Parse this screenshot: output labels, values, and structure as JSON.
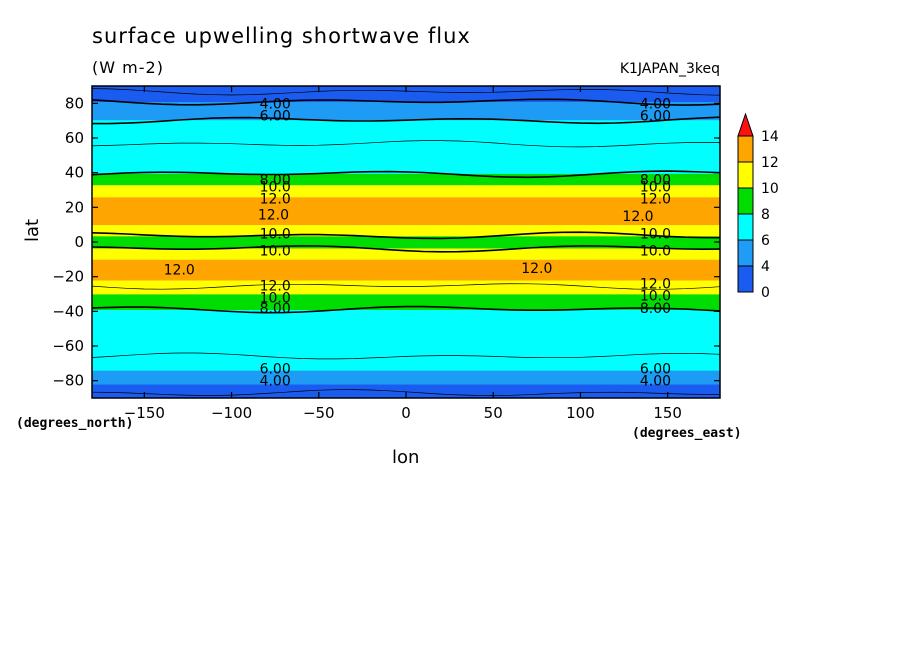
{
  "chart_data": {
    "type": "heatmap",
    "title": "surface upwelling shortwave flux",
    "units_label": "(W m-2)",
    "run_label": "K1JAPAN_3keq",
    "xlabel": "lon",
    "ylabel": "lat",
    "x_unit_label": "(degrees_east)",
    "y_unit_label": "(degrees_north)",
    "xlim": [
      -180,
      180
    ],
    "ylim": [
      -90,
      90
    ],
    "x_ticks": [
      -150,
      -100,
      -50,
      0,
      50,
      100,
      150
    ],
    "y_ticks": [
      -80,
      -60,
      -40,
      -20,
      0,
      20,
      40,
      60,
      80
    ],
    "colorbar": {
      "levels": [
        0,
        2,
        4,
        6,
        8,
        10,
        12,
        14
      ],
      "tick_labels": [
        "0",
        "4",
        "6",
        "8",
        "10",
        "12",
        "14"
      ],
      "colors": [
        "#1a5cf0",
        "#1f9cf5",
        "#00ffff",
        "#00dd00",
        "#ffff00",
        "#ffa500",
        "#ff1010"
      ],
      "extend": "max"
    },
    "zonal_profile": {
      "lat": [
        -90,
        -86,
        -82,
        -78,
        -74,
        -70,
        -60,
        -50,
        -42,
        -38,
        -34,
        -30,
        -26,
        -22,
        -16,
        -10,
        -6,
        -3,
        0,
        3,
        6,
        10,
        16,
        22,
        26,
        30,
        33,
        36,
        40,
        50,
        60,
        66,
        72,
        76,
        80,
        84,
        90
      ],
      "value": [
        2.5,
        3.2,
        4.0,
        5.0,
        6.0,
        6.8,
        7.3,
        7.5,
        7.6,
        8.1,
        9.0,
        10.0,
        10.8,
        12.0,
        12.4,
        12.0,
        11.0,
        9.7,
        9.3,
        9.7,
        11.0,
        12.0,
        12.6,
        12.5,
        12.0,
        11.0,
        10.0,
        9.0,
        7.8,
        7.2,
        6.9,
        6.5,
        5.8,
        5.0,
        4.2,
        3.4,
        2.5
      ]
    },
    "contour_labels": [
      {
        "text": "4.00",
        "lon": -75,
        "lat": 80
      },
      {
        "text": "6.00",
        "lon": -75,
        "lat": 73
      },
      {
        "text": "4.00",
        "lon": 143,
        "lat": 80
      },
      {
        "text": "6.00",
        "lon": 143,
        "lat": 73
      },
      {
        "text": "8.00",
        "lon": -75,
        "lat": 36
      },
      {
        "text": "10.0",
        "lon": -75,
        "lat": 32
      },
      {
        "text": "12.0",
        "lon": -75,
        "lat": 25
      },
      {
        "text": "12.0",
        "lon": -76,
        "lat": 16
      },
      {
        "text": "8.00",
        "lon": 143,
        "lat": 36
      },
      {
        "text": "10.0",
        "lon": 143,
        "lat": 32
      },
      {
        "text": "12.0",
        "lon": 143,
        "lat": 25
      },
      {
        "text": "12.0",
        "lon": 133,
        "lat": 15
      },
      {
        "text": "10.0",
        "lon": -75,
        "lat": 5
      },
      {
        "text": "10.0",
        "lon": -75,
        "lat": -5
      },
      {
        "text": "10.0",
        "lon": 143,
        "lat": 5
      },
      {
        "text": "10.0",
        "lon": 143,
        "lat": -5
      },
      {
        "text": "12.0",
        "lon": -130,
        "lat": -16
      },
      {
        "text": "12.0",
        "lon": 75,
        "lat": -15
      },
      {
        "text": "12.0",
        "lon": -75,
        "lat": -25
      },
      {
        "text": "10.0",
        "lon": -75,
        "lat": -32
      },
      {
        "text": "8.00",
        "lon": -75,
        "lat": -38
      },
      {
        "text": "12.0",
        "lon": 143,
        "lat": -24
      },
      {
        "text": "10.0",
        "lon": 143,
        "lat": -31
      },
      {
        "text": "8.00",
        "lon": 143,
        "lat": -38
      },
      {
        "text": "6.00",
        "lon": -75,
        "lat": -73
      },
      {
        "text": "4.00",
        "lon": -75,
        "lat": -80
      },
      {
        "text": "6.00",
        "lon": 143,
        "lat": -73
      },
      {
        "text": "4.00",
        "lon": 143,
        "lat": -80
      }
    ]
  }
}
